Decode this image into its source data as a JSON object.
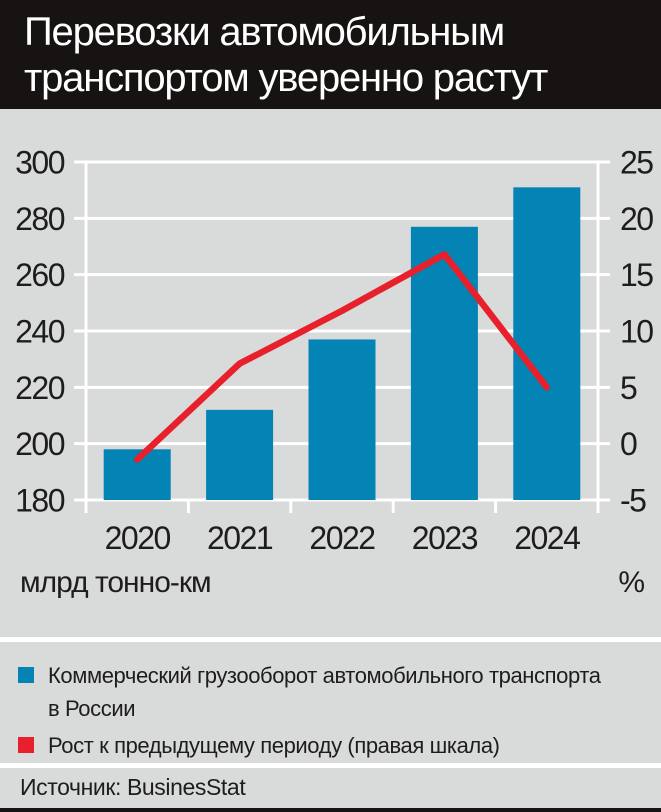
{
  "title_lines": [
    "Перевозки автомобильным",
    "транспортом уверенно растут"
  ],
  "chart_data": {
    "type": "bar-line-combo",
    "categories": [
      "2020",
      "2021",
      "2022",
      "2023",
      "2024"
    ],
    "series": [
      {
        "name": "Коммерческий грузооборот автомобильного транспорта в России",
        "type": "bar",
        "axis": "left",
        "color": "#0483b5",
        "values": [
          198,
          212,
          237,
          277,
          291
        ]
      },
      {
        "name": "Рост к предыдущему периоду (правая шкала)",
        "type": "line",
        "axis": "right",
        "color": "#e7202c",
        "values": [
          -1.4,
          7.1,
          11.8,
          16.8,
          5.0
        ]
      }
    ],
    "left_axis": {
      "label": "млрд тонно-км",
      "min": 180,
      "max": 300,
      "ticks": [
        300,
        280,
        260,
        240,
        220,
        200,
        180
      ]
    },
    "right_axis": {
      "label": "%",
      "min": -5,
      "max": 25,
      "ticks": [
        25,
        20,
        15,
        10,
        5,
        0,
        -5
      ]
    },
    "grid": "horizontal",
    "grid_color": "#ffffff",
    "legend_position": "bottom"
  },
  "legend": [
    {
      "color": "#0483b5",
      "lines": [
        "Коммерческий грузооборот автомобильного транспорта",
        "в России"
      ]
    },
    {
      "color": "#e7202c",
      "lines": [
        "Рост к предыдущему периоду (правая шкала)"
      ]
    }
  ],
  "source": "Источник: BusinesStat",
  "colors": {
    "background": "#d9dada",
    "band": "#171312",
    "grid": "#ffffff",
    "text": "#1d1d1b",
    "bar": "#0483b5",
    "line": "#e7202c"
  }
}
